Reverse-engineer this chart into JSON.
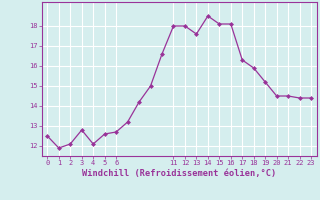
{
  "hours": [
    0,
    1,
    2,
    3,
    4,
    5,
    6,
    7,
    8,
    9,
    10,
    11,
    12,
    13,
    14,
    15,
    16,
    17,
    18,
    19,
    20,
    21,
    22,
    23
  ],
  "values": [
    12.5,
    11.9,
    12.1,
    12.8,
    12.1,
    12.6,
    12.7,
    13.2,
    14.2,
    15.0,
    16.6,
    18.0,
    18.0,
    17.6,
    18.5,
    18.1,
    18.1,
    16.3,
    15.9,
    15.2,
    14.5,
    14.5,
    14.4,
    14.4
  ],
  "line_color": "#993399",
  "marker": "D",
  "marker_size": 2.0,
  "linewidth": 0.9,
  "bg_color": "#d5eeee",
  "grid_color": "#ffffff",
  "xlabel": "Windchill (Refroidissement éolien,°C)",
  "xlabel_color": "#993399",
  "tick_color": "#993399",
  "ylim": [
    11.5,
    19.2
  ],
  "xlim": [
    -0.5,
    23.5
  ],
  "yticks": [
    12,
    13,
    14,
    15,
    16,
    17,
    18
  ],
  "xticks": [
    0,
    1,
    2,
    3,
    4,
    5,
    6,
    11,
    12,
    13,
    14,
    15,
    16,
    17,
    18,
    19,
    20,
    21,
    22,
    23
  ],
  "tick_fontsize": 5.0,
  "xlabel_fontsize": 6.2,
  "spine_color": "#993399"
}
